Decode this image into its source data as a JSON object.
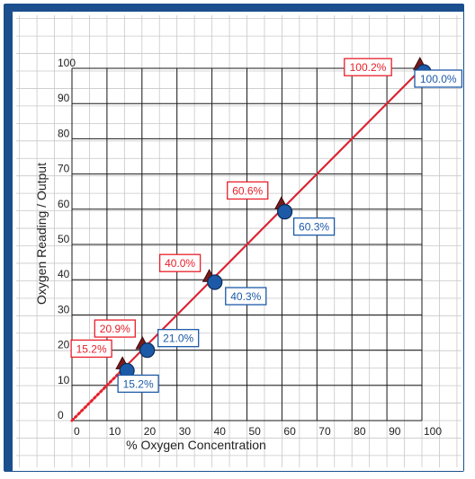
{
  "chart_data": {
    "type": "line",
    "title": "",
    "xlabel": "% Oxygen Concentration",
    "ylabel": "Oxygen Reading / Output",
    "xlim": [
      0,
      100
    ],
    "ylim": [
      0,
      100
    ],
    "x_ticks": [
      0,
      10,
      20,
      30,
      40,
      50,
      60,
      70,
      80,
      90,
      100
    ],
    "y_ticks": [
      0,
      10,
      20,
      30,
      40,
      50,
      60,
      70,
      80,
      90,
      100
    ],
    "grid": true,
    "series": [
      {
        "marker": "triangle",
        "color": "#e8202a",
        "points": [
          {
            "x": 15.2,
            "y": 15.2,
            "label": "15.2%"
          },
          {
            "x": 20.9,
            "y": 20.9,
            "label": "20.9%"
          },
          {
            "x": 40.0,
            "y": 40.0,
            "label": "40.0%"
          },
          {
            "x": 60.6,
            "y": 60.6,
            "label": "60.6%"
          },
          {
            "x": 100.2,
            "y": 100.2,
            "label": "100.2%"
          }
        ]
      },
      {
        "marker": "circle",
        "color": "#1c5aa8",
        "points": [
          {
            "x": 15.2,
            "y": 15.2,
            "label": "15.2%"
          },
          {
            "x": 21.0,
            "y": 21.0,
            "label": "21.0%"
          },
          {
            "x": 40.3,
            "y": 40.3,
            "label": "40.3%"
          },
          {
            "x": 60.3,
            "y": 60.3,
            "label": "60.3%"
          },
          {
            "x": 100.0,
            "y": 100.0,
            "label": "100.0%"
          }
        ]
      }
    ],
    "extrapolation": {
      "style": "dotted",
      "color": "#e8202a",
      "from": [
        0,
        0
      ],
      "to": [
        15.2,
        15.2
      ]
    }
  },
  "colors": {
    "frame": "#1b4f8e",
    "minor_grid": "#c8c8c8",
    "major_grid": "#1a1a1a",
    "red": "#e8202a",
    "blue": "#1c5aa8"
  }
}
